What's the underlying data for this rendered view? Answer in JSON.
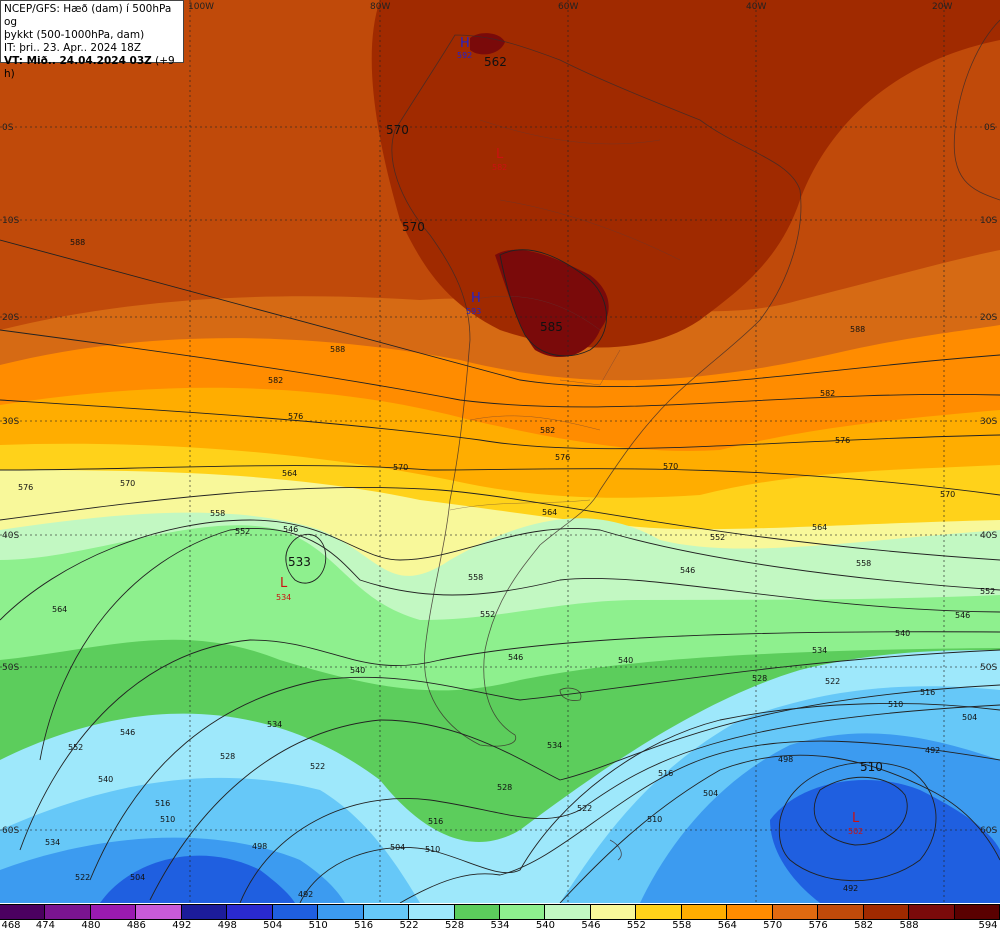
{
  "info": {
    "line1": "NCEP/GFS: Hæð (dam) í 500hPa og",
    "line2": "þykkt (500-1000hPa, dam)",
    "line3": "IT: þri.. 23. Apr.. 2024 18Z",
    "line4_bold": "VT: Mið.. 24.04.2024 03Z",
    "line4_rest": " (+9 h)"
  },
  "lon_labels": [
    "100W",
    "80W",
    "60W",
    "40W",
    "20W"
  ],
  "lat_labels": [
    "0S",
    "10S",
    "20S",
    "30S",
    "40S",
    "50S",
    "60S"
  ],
  "centers": [
    {
      "type": "H",
      "value": "592",
      "color": "#2222cc"
    },
    {
      "type": "L",
      "value": "582",
      "color": "#cc1111"
    },
    {
      "type": "H",
      "value": "593",
      "color": "#2222cc"
    },
    {
      "type": "L",
      "value": "534",
      "color": "#cc1111"
    },
    {
      "type": "L",
      "value": "502",
      "color": "#cc1111"
    }
  ],
  "height_labels": [
    "562",
    "570",
    "570",
    "585",
    "533",
    "510"
  ],
  "contour_values": [
    "588",
    "582",
    "576",
    "570",
    "564",
    "558",
    "552",
    "546",
    "540",
    "534",
    "528",
    "522",
    "516",
    "510",
    "504",
    "498",
    "492"
  ],
  "colorbar": {
    "levels": [
      "468",
      "474",
      "480",
      "486",
      "492",
      "498",
      "504",
      "510",
      "516",
      "522",
      "528",
      "534",
      "540",
      "546",
      "552",
      "558",
      "564",
      "570",
      "576",
      "582",
      "588",
      "594"
    ],
    "colors": [
      "#4b0060",
      "#7a1490",
      "#9a1ab0",
      "#c85ad8",
      "#1c1c9a",
      "#2a2ad0",
      "#1f5fe0",
      "#3c9bf0",
      "#66c8f8",
      "#9ee8fb",
      "#5ccd5c",
      "#8ef08e",
      "#c2f8c2",
      "#f8f89a",
      "#ffd21a",
      "#ffad00",
      "#ff8c00",
      "#e06a10",
      "#c04a0a",
      "#a02a00",
      "#7a0a0a",
      "#5a0000"
    ]
  }
}
